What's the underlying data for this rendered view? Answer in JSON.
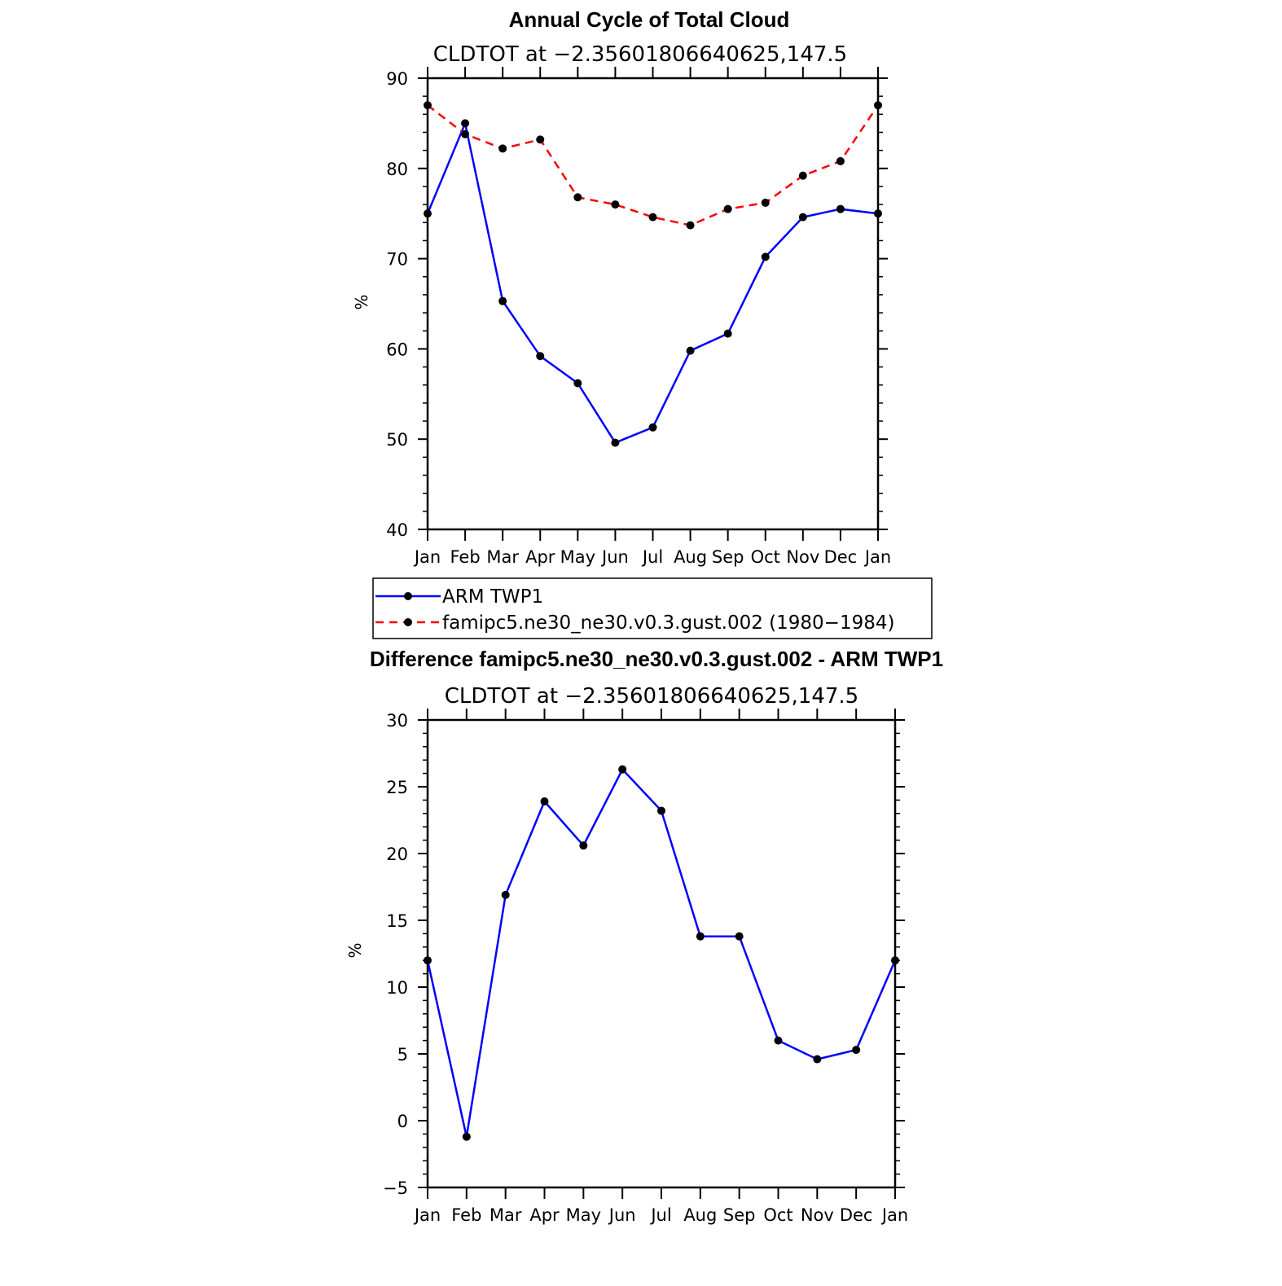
{
  "chart_data": [
    {
      "type": "line",
      "title": "Annual Cycle of Total Cloud",
      "subtitle": "CLDTOT at −2.35601806640625,147.5",
      "xlabel": "",
      "ylabel": "%",
      "categories": [
        "Jan",
        "Feb",
        "Mar",
        "Apr",
        "May",
        "Jun",
        "Jul",
        "Aug",
        "Sep",
        "Oct",
        "Nov",
        "Dec",
        "Jan"
      ],
      "ylim": [
        40,
        90
      ],
      "yticks": [
        "40",
        "50",
        "60",
        "70",
        "80",
        "90"
      ],
      "series": [
        {
          "name": "ARM TWP1",
          "color": "#0000ff",
          "dash": "solid",
          "values": [
            75.0,
            85.0,
            65.3,
            59.2,
            56.2,
            49.6,
            51.3,
            59.8,
            61.7,
            70.2,
            74.6,
            75.5,
            75.0
          ]
        },
        {
          "name": "famipc5.ne30_ne30.v0.3.gust.002 (1980−1984)",
          "color": "#ff0000",
          "dash": "dashed",
          "values": [
            87.0,
            83.8,
            82.2,
            83.2,
            76.8,
            76.0,
            74.6,
            73.7,
            75.5,
            76.2,
            79.2,
            80.8,
            87.0
          ]
        }
      ],
      "legend": {
        "position": "bottom",
        "entries": [
          "ARM TWP1",
          "famipc5.ne30_ne30.v0.3.gust.002 (1980−1984)"
        ]
      }
    },
    {
      "type": "line",
      "title": "Difference famipc5.ne30_ne30.v0.3.gust.002 - ARM TWP1",
      "subtitle": "CLDTOT at −2.35601806640625,147.5",
      "xlabel": "",
      "ylabel": "%",
      "categories": [
        "Jan",
        "Feb",
        "Mar",
        "Apr",
        "May",
        "Jun",
        "Jul",
        "Aug",
        "Sep",
        "Oct",
        "Nov",
        "Dec",
        "Jan"
      ],
      "ylim": [
        -5,
        30
      ],
      "yticks": [
        "−5",
        "0",
        "5",
        "10",
        "15",
        "20",
        "25",
        "30"
      ],
      "series": [
        {
          "name": "Difference",
          "color": "#0000ff",
          "dash": "solid",
          "values": [
            12.0,
            -1.2,
            16.9,
            23.9,
            20.6,
            26.3,
            23.2,
            13.8,
            13.8,
            6.0,
            4.6,
            5.3,
            12.0
          ]
        }
      ]
    }
  ]
}
